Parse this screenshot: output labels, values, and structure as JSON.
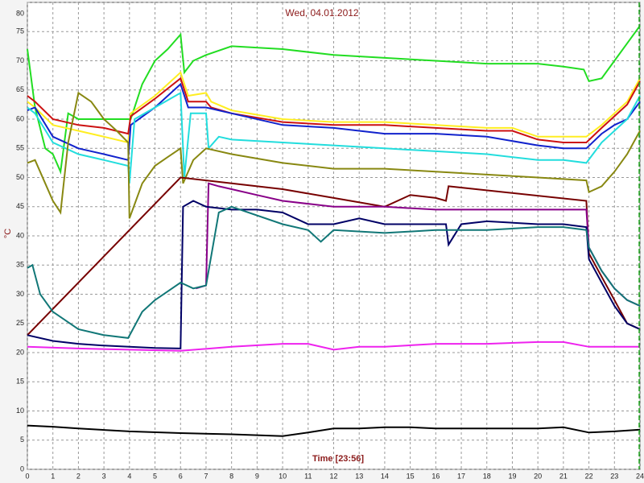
{
  "chart_data": {
    "type": "line",
    "title": "Wed, 04.01.2012",
    "xlabel": "Time [23:56]",
    "ylabel": "°C",
    "xlim": [
      0,
      24
    ],
    "ylim": [
      0,
      80
    ],
    "xticks": [
      0,
      1,
      2,
      3,
      4,
      5,
      6,
      7,
      8,
      9,
      10,
      11,
      12,
      13,
      14,
      15,
      16,
      17,
      18,
      19,
      20,
      21,
      22,
      23,
      24
    ],
    "yticks": [
      0,
      5,
      10,
      15,
      20,
      25,
      30,
      35,
      40,
      45,
      50,
      55,
      60,
      65,
      70,
      75,
      80
    ],
    "grid": true,
    "series": [
      {
        "color": "#22dd22",
        "x": [
          0,
          0.3,
          0.7,
          1,
          1.3,
          1.6,
          2,
          3,
          3.95,
          4.05,
          4.5,
          5,
          5.5,
          6,
          6.15,
          6.5,
          7,
          8,
          10,
          12,
          14,
          16,
          18,
          20,
          21,
          21.8,
          22,
          22.5,
          23,
          23.5,
          24
        ],
        "values": [
          72,
          62,
          55,
          54,
          51,
          61,
          60,
          60,
          60,
          60,
          66,
          70,
          72,
          74.5,
          68,
          70,
          71,
          72.5,
          72,
          71,
          70.5,
          70,
          69.5,
          69.5,
          69,
          68.5,
          66.5,
          67,
          70,
          73,
          76
        ]
      },
      {
        "color": "#ffee22",
        "x": [
          0,
          0.3,
          1,
          2,
          3,
          3.95,
          4.05,
          5,
          6,
          6.3,
          7,
          7.2,
          8,
          10,
          12,
          14,
          16,
          18,
          19,
          20,
          21,
          21.9,
          22.5,
          23,
          23.5,
          24
        ],
        "values": [
          63,
          62,
          59,
          58,
          57,
          56,
          61,
          64,
          68,
          64,
          64.5,
          63,
          61.5,
          60,
          59.5,
          59.5,
          59,
          58.5,
          58.5,
          57,
          57,
          57,
          59,
          61,
          63,
          67
        ]
      },
      {
        "color": "#cc1111",
        "x": [
          0,
          0.3,
          1,
          2,
          3,
          3.95,
          4.05,
          5,
          6,
          6.3,
          7,
          7.2,
          8,
          10,
          12,
          14,
          16,
          18,
          19,
          20,
          21,
          21.9,
          22.5,
          23,
          23.5,
          24
        ],
        "values": [
          64,
          63,
          60,
          59,
          58.5,
          57.5,
          60.5,
          63.5,
          67,
          63,
          63,
          62,
          61,
          59.5,
          59,
          59,
          58.5,
          58,
          58,
          56.5,
          56,
          56,
          58.5,
          60.5,
          62.5,
          66.5
        ]
      },
      {
        "color": "#1122cc",
        "x": [
          0,
          0.3,
          1,
          2,
          3,
          3.95,
          4.05,
          5,
          6,
          6.3,
          7,
          8,
          10,
          12,
          14,
          16,
          18,
          20,
          21,
          21.9,
          22.5,
          23,
          23.5,
          24
        ],
        "values": [
          61.5,
          62,
          57,
          55,
          54,
          53,
          59,
          62,
          66,
          62,
          62,
          61,
          59,
          58.5,
          57.5,
          57.5,
          57,
          55.5,
          55,
          55,
          57.5,
          59,
          60,
          63
        ]
      },
      {
        "color": "#22dddd",
        "x": [
          0,
          0.3,
          1,
          1.5,
          2,
          3,
          3.95,
          4,
          4.2,
          5,
          6,
          6.15,
          6.4,
          7,
          7.1,
          7.5,
          8,
          10,
          12,
          14,
          16,
          18,
          20,
          21,
          21.9,
          22.5,
          23,
          23.5,
          24
        ],
        "values": [
          62,
          61,
          56,
          55,
          54,
          53,
          52,
          49,
          60,
          62,
          64.5,
          50,
          61,
          61,
          55,
          57,
          56.5,
          56,
          55.5,
          55,
          54.5,
          54,
          53,
          53,
          52.5,
          56,
          58,
          60,
          64
        ]
      },
      {
        "color": "#888811",
        "x": [
          0,
          0.3,
          0.7,
          1,
          1.3,
          1.6,
          2,
          2.5,
          3,
          3.5,
          3.95,
          4,
          4.5,
          5,
          5.5,
          6,
          6.1,
          6.5,
          7,
          8,
          10,
          12,
          14,
          16,
          18,
          20,
          21.9,
          22,
          22.5,
          23,
          23.5,
          24
        ],
        "values": [
          52.5,
          53,
          49,
          46,
          44,
          56,
          64.5,
          63,
          60,
          58,
          56,
          43,
          49,
          52,
          53.5,
          55,
          49,
          53,
          55,
          54,
          52.5,
          51.5,
          51.5,
          51,
          50.5,
          50,
          49.5,
          47.5,
          48.5,
          51,
          54,
          58
        ]
      },
      {
        "color": "#770000",
        "x": [
          0,
          6,
          8,
          10,
          12,
          14,
          15,
          16,
          16.4,
          16.5,
          21.9,
          22,
          22.5,
          23,
          23.5,
          24
        ],
        "values": [
          23,
          50,
          49,
          48,
          46.5,
          45,
          47,
          46.5,
          46,
          48.5,
          46,
          37,
          33,
          29,
          25,
          24
        ]
      },
      {
        "color": "#880088",
        "x": [
          6.6,
          7,
          7.1,
          7.5,
          8,
          9,
          10,
          12,
          14,
          16,
          18,
          20,
          21,
          21.9,
          22,
          22.5,
          23,
          23.5,
          24
        ],
        "values": [
          31,
          31.5,
          49,
          48.5,
          48,
          47,
          46,
          45,
          45,
          44.5,
          44.5,
          44.5,
          44.5,
          44.5,
          38,
          34,
          31,
          29,
          28
        ]
      },
      {
        "color": "#000066",
        "x": [
          0,
          1,
          2,
          3,
          4,
          5,
          6,
          6.1,
          6.5,
          7,
          8,
          9,
          10,
          11,
          12,
          13,
          14,
          15,
          16,
          16.4,
          16.5,
          17,
          18,
          20,
          21,
          21.9,
          22,
          22.5,
          23,
          23.5,
          24
        ],
        "values": [
          23,
          22,
          21.5,
          21.2,
          21,
          20.8,
          20.7,
          45,
          46,
          45,
          44.5,
          44.5,
          44,
          42,
          42,
          43,
          42,
          42,
          42,
          42,
          38.5,
          42,
          42.5,
          42,
          42,
          41.5,
          36,
          32,
          28,
          25,
          24
        ]
      },
      {
        "color": "#117777",
        "x": [
          0,
          0.2,
          0.5,
          1,
          2,
          3,
          3.95,
          4.5,
          5,
          5.5,
          6,
          6.5,
          7,
          7.5,
          8,
          10,
          11,
          11.5,
          12,
          14,
          16,
          18,
          20,
          21,
          21.9,
          22,
          22.5,
          23,
          23.5,
          24
        ],
        "values": [
          34.5,
          35,
          30,
          27,
          24,
          23,
          22.5,
          27,
          29,
          30.5,
          32,
          31,
          31.5,
          44,
          45,
          42,
          41,
          39,
          41,
          40.5,
          41,
          41,
          41.5,
          41.5,
          41,
          38,
          34,
          31,
          29,
          28
        ]
      },
      {
        "color": "#ee22ee",
        "x": [
          0,
          2,
          4,
          6,
          8,
          10,
          11,
          12,
          13,
          14,
          16,
          18,
          20,
          21,
          22,
          23,
          24
        ],
        "values": [
          21,
          20.7,
          20.5,
          20.3,
          21,
          21.5,
          21.5,
          20.5,
          21,
          21,
          21.5,
          21.5,
          21.8,
          21.8,
          21,
          21,
          21
        ]
      },
      {
        "color": "#000000",
        "x": [
          0,
          1,
          2,
          4,
          6,
          8,
          10,
          11,
          12,
          13,
          14,
          15,
          16,
          18,
          20,
          21,
          22,
          23,
          24
        ],
        "values": [
          7.5,
          7.3,
          7,
          6.5,
          6.2,
          6,
          5.7,
          6.3,
          7,
          7,
          7.2,
          7.2,
          7,
          7,
          7,
          7.2,
          6.3,
          6.5,
          6.8
        ]
      }
    ]
  }
}
